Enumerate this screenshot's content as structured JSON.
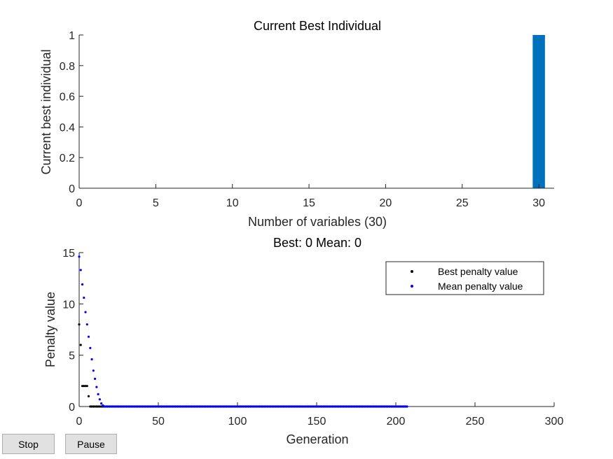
{
  "controls": {
    "stop_label": "Stop",
    "pause_label": "Pause"
  },
  "chart_data": [
    {
      "type": "bar",
      "title": "Current Best Individual",
      "xlabel": "Number of variables (30)",
      "ylabel": "Current best individual",
      "xlim": [
        0,
        31
      ],
      "ylim": [
        0,
        1
      ],
      "xticks": [
        0,
        5,
        10,
        15,
        20,
        25,
        30
      ],
      "yticks": [
        0,
        0.2,
        0.4,
        0.6,
        0.8,
        1
      ],
      "ytick_labels": [
        "0",
        "0.2",
        "0.4",
        "0.6",
        "0.8",
        "1"
      ],
      "categories": [
        1,
        2,
        3,
        4,
        5,
        6,
        7,
        8,
        9,
        10,
        11,
        12,
        13,
        14,
        15,
        16,
        17,
        18,
        19,
        20,
        21,
        22,
        23,
        24,
        25,
        26,
        27,
        28,
        29,
        30
      ],
      "values": [
        0,
        0,
        0,
        0,
        0,
        0,
        0,
        0,
        0,
        0,
        0,
        0,
        0,
        0,
        0,
        0,
        0,
        0,
        0,
        0,
        0,
        0,
        0,
        0,
        0,
        0,
        0,
        0,
        0,
        1
      ],
      "bar_color": "#0072bd"
    },
    {
      "type": "scatter",
      "title": "Best: 0 Mean: 0",
      "xlabel": "Generation",
      "ylabel": "Penalty value",
      "xlim": [
        0,
        300
      ],
      "ylim": [
        0,
        15
      ],
      "xticks": [
        0,
        50,
        100,
        150,
        200,
        250,
        300
      ],
      "yticks": [
        0,
        5,
        10,
        15
      ],
      "legend": {
        "location": "top-right"
      },
      "series": [
        {
          "name": "Best penalty value",
          "color": "#000000",
          "x_range": [
            0,
            207
          ],
          "points": [
            [
              0,
              8
            ],
            [
              1,
              6
            ],
            [
              2,
              2
            ],
            [
              3,
              2
            ],
            [
              4,
              2
            ],
            [
              5,
              2
            ],
            [
              6,
              1
            ]
          ],
          "rest_value": 0
        },
        {
          "name": "Mean penalty value",
          "color": "#0000ff",
          "x_range": [
            0,
            207
          ],
          "points": [
            [
              0,
              14.6
            ],
            [
              1,
              13.3
            ],
            [
              2,
              11.9
            ],
            [
              3,
              10.6
            ],
            [
              4,
              9.2
            ],
            [
              5,
              8.0
            ],
            [
              6,
              6.8
            ],
            [
              7,
              5.7
            ],
            [
              8,
              4.6
            ],
            [
              9,
              3.5
            ],
            [
              10,
              2.7
            ],
            [
              11,
              1.9
            ],
            [
              12,
              1.2
            ],
            [
              13,
              0.7
            ],
            [
              14,
              0.3
            ],
            [
              15,
              0.1
            ]
          ],
          "rest_value": 0
        }
      ]
    }
  ]
}
